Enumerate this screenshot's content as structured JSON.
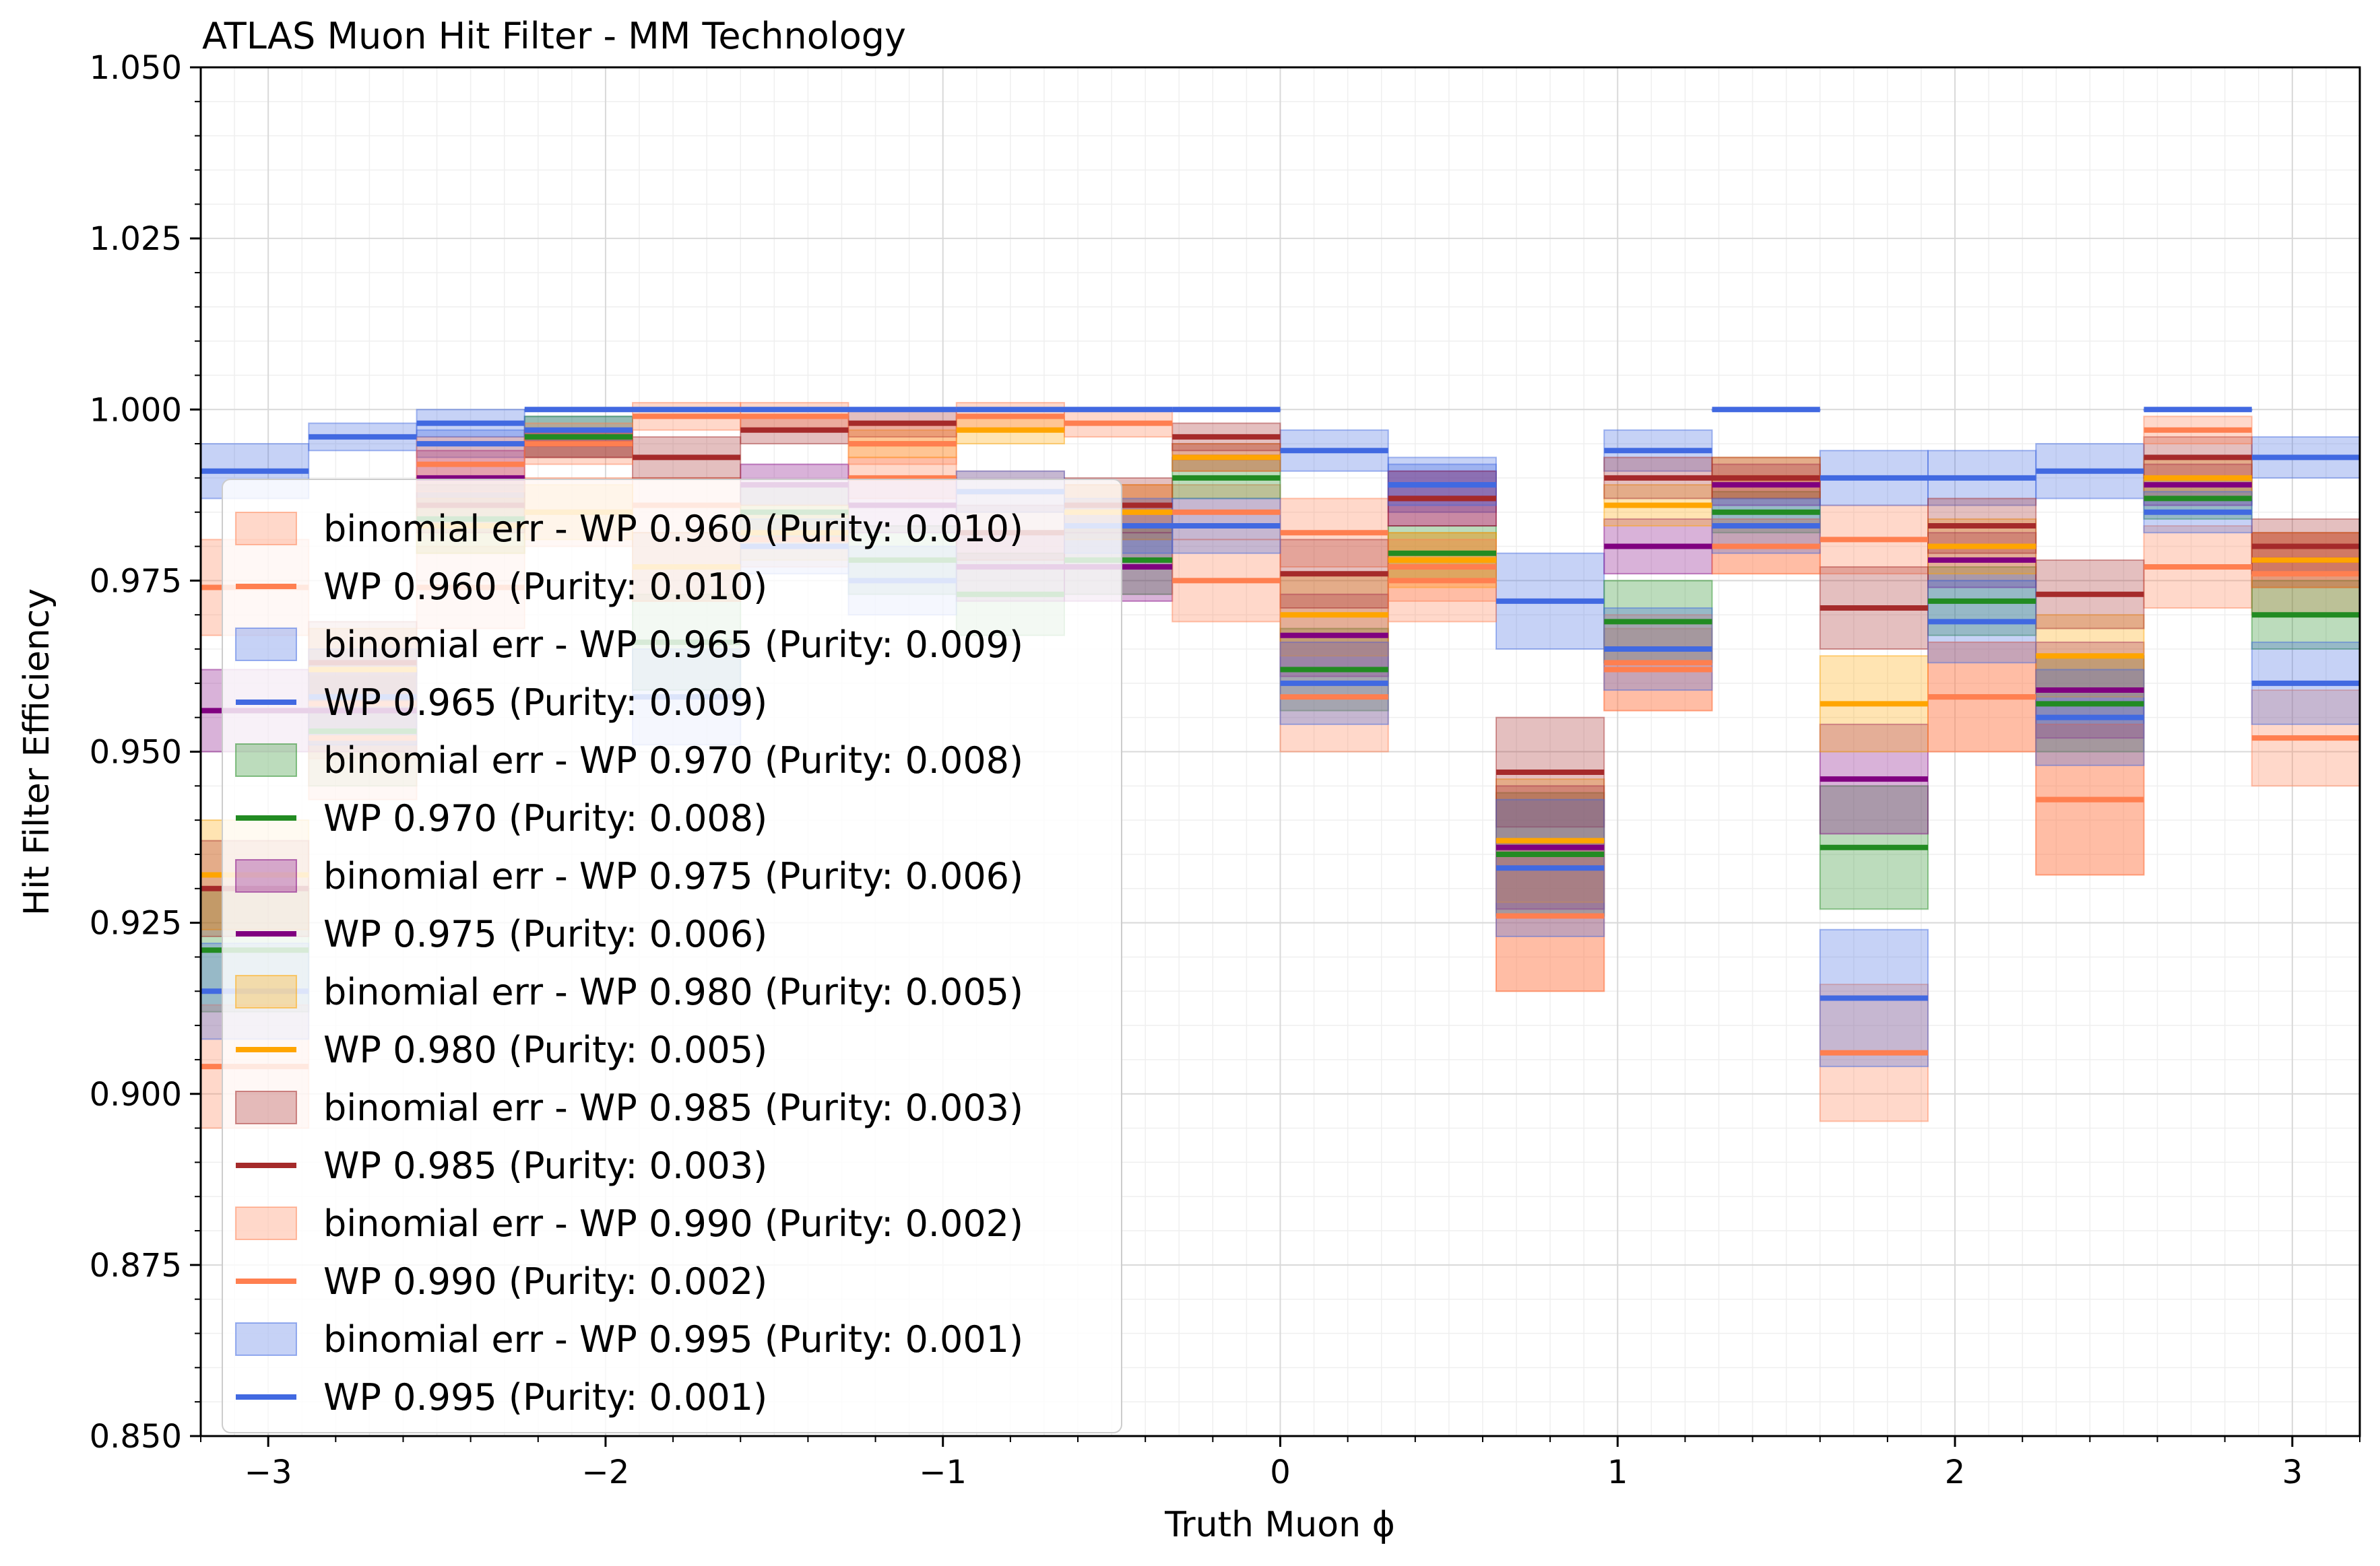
{
  "chart_data": {
    "type": "line",
    "title": "ATLAS Muon Hit Filter - MM Technology",
    "xlabel": "Truth Muon ϕ",
    "ylabel": "Hit Filter Efficiency",
    "xlim": [
      -3.2,
      3.2
    ],
    "ylim": [
      0.85,
      1.05
    ],
    "xticks": [
      -3,
      -2,
      -1,
      0,
      1,
      2,
      3
    ],
    "xtick_labels": [
      "−3",
      "−2",
      "−1",
      "0",
      "1",
      "2",
      "3"
    ],
    "yticks": [
      0.85,
      0.875,
      0.9,
      0.925,
      0.95,
      0.975,
      1.0,
      1.025,
      1.05
    ],
    "ytick_labels": [
      "0.850",
      "0.875",
      "0.900",
      "0.925",
      "0.950",
      "0.975",
      "1.000",
      "1.025",
      "1.050"
    ],
    "grid": true,
    "legend_position": "lower-left",
    "bin_edges": [
      -3.2,
      -2.88,
      -2.56,
      -2.24,
      -1.92,
      -1.6,
      -1.28,
      -0.96,
      -0.64,
      -0.32,
      0.0,
      0.32,
      0.64,
      0.96,
      1.28,
      1.6,
      1.92,
      2.24,
      2.56,
      2.88,
      3.2
    ],
    "series": [
      {
        "name": "WP 0.960 (Purity: 0.010)",
        "band_label": "binomial err - WP 0.960 (Purity: 0.010)",
        "color": "#ff7f50",
        "values": [
          0.974,
          0.957,
          0.974,
          0.985,
          0.986,
          0.981,
          0.99,
          0.988,
          0.985,
          0.985,
          0.982,
          0.977,
          0.926,
          0.962,
          0.98,
          0.981,
          0.958,
          0.943,
          0.977,
          0.976
        ],
        "err": [
          0.007,
          0.008,
          0.006,
          0.005,
          0.004,
          0.004,
          0.003,
          0.003,
          0.004,
          0.004,
          0.005,
          0.005,
          0.011,
          0.006,
          0.004,
          0.005,
          0.008,
          0.011,
          0.006,
          0.006
        ]
      },
      {
        "name": "WP 0.965 (Purity: 0.009)",
        "band_label": "binomial err - WP 0.965 (Purity: 0.009)",
        "color": "#4169e1",
        "values": [
          0.991,
          0.996,
          0.995,
          0.997,
          1.0,
          1.0,
          1.0,
          1.0,
          1.0,
          1.0,
          0.994,
          0.989,
          0.972,
          0.994,
          1.0,
          0.99,
          0.99,
          0.991,
          1.0,
          0.993
        ],
        "err": [
          0.004,
          0.002,
          0.002,
          0.002,
          0.0,
          0.0,
          0.0,
          0.0,
          0.0,
          0.0,
          0.003,
          0.004,
          0.007,
          0.003,
          0.0,
          0.004,
          0.004,
          0.004,
          0.0,
          0.003
        ]
      },
      {
        "name": "WP 0.970 (Purity: 0.008)",
        "band_label": "binomial err - WP 0.970 (Purity: 0.008)",
        "color": "#228b22",
        "values": [
          0.921,
          0.953,
          0.984,
          0.996,
          0.966,
          0.985,
          0.978,
          0.973,
          0.978,
          0.99,
          0.962,
          0.979,
          0.935,
          0.969,
          0.985,
          0.936,
          0.972,
          0.957,
          0.987,
          0.97
        ],
        "err": [
          0.009,
          0.008,
          0.005,
          0.003,
          0.007,
          0.004,
          0.005,
          0.006,
          0.005,
          0.003,
          0.006,
          0.004,
          0.009,
          0.006,
          0.003,
          0.009,
          0.005,
          0.007,
          0.003,
          0.005
        ]
      },
      {
        "name": "WP 0.975 (Purity: 0.006)",
        "band_label": "binomial err - WP 0.975 (Purity: 0.006)",
        "color": "#800080",
        "values": [
          0.956,
          0.956,
          0.99,
          0.995,
          0.977,
          0.989,
          0.986,
          0.977,
          0.977,
          0.993,
          0.967,
          0.987,
          0.936,
          0.98,
          0.989,
          0.946,
          0.978,
          0.959,
          0.989,
          0.978
        ],
        "err": [
          0.006,
          0.006,
          0.004,
          0.002,
          0.005,
          0.003,
          0.004,
          0.005,
          0.005,
          0.002,
          0.006,
          0.004,
          0.009,
          0.004,
          0.003,
          0.008,
          0.004,
          0.007,
          0.003,
          0.004
        ]
      },
      {
        "name": "WP 0.980 (Purity: 0.005)",
        "band_label": "binomial err - WP 0.980 (Purity: 0.005)",
        "color": "#ffa500",
        "values": [
          0.932,
          0.962,
          0.983,
          0.985,
          0.977,
          0.982,
          0.995,
          0.997,
          0.985,
          0.993,
          0.97,
          0.978,
          0.937,
          0.986,
          0.99,
          0.957,
          0.98,
          0.964,
          0.99,
          0.978
        ],
        "err": [
          0.008,
          0.006,
          0.004,
          0.004,
          0.005,
          0.004,
          0.002,
          0.002,
          0.004,
          0.002,
          0.006,
          0.004,
          0.009,
          0.003,
          0.003,
          0.007,
          0.004,
          0.006,
          0.003,
          0.004
        ]
      },
      {
        "name": "WP 0.985 (Purity: 0.003)",
        "band_label": "binomial err - WP 0.985 (Purity: 0.003)",
        "color": "#a52a2a",
        "values": [
          0.93,
          0.963,
          0.986,
          0.995,
          0.993,
          0.997,
          0.998,
          0.982,
          0.986,
          0.996,
          0.976,
          0.987,
          0.947,
          0.99,
          0.99,
          0.971,
          0.983,
          0.973,
          0.993,
          0.98
        ],
        "err": [
          0.007,
          0.006,
          0.004,
          0.002,
          0.003,
          0.002,
          0.002,
          0.004,
          0.004,
          0.002,
          0.005,
          0.004,
          0.008,
          0.003,
          0.003,
          0.006,
          0.004,
          0.005,
          0.003,
          0.004
        ]
      },
      {
        "name": "WP 0.990 (Purity: 0.002)",
        "band_label": "binomial err - WP 0.990 (Purity: 0.002)",
        "color": "#ff7f50",
        "values": [
          0.904,
          0.952,
          0.992,
          0.995,
          0.999,
          0.999,
          0.995,
          0.999,
          0.998,
          0.975,
          0.958,
          0.975,
          0.926,
          0.963,
          0.98,
          0.906,
          0.958,
          0.943,
          0.997,
          0.952
        ],
        "err": [
          0.009,
          0.009,
          0.004,
          0.003,
          0.002,
          0.002,
          0.003,
          0.002,
          0.002,
          0.006,
          0.008,
          0.006,
          0.011,
          0.007,
          0.004,
          0.01,
          0.008,
          0.011,
          0.002,
          0.007
        ]
      },
      {
        "name": "WP 0.995 (Purity: 0.001)",
        "band_label": "binomial err - WP 0.995 (Purity: 0.001)",
        "color": "#4169e1",
        "values": [
          0.915,
          0.958,
          0.998,
          1.0,
          0.958,
          0.98,
          0.975,
          0.988,
          0.983,
          0.983,
          0.96,
          0.989,
          0.933,
          0.965,
          0.983,
          0.914,
          0.969,
          0.955,
          0.985,
          0.96
        ],
        "err": [
          0.007,
          0.007,
          0.002,
          0.0,
          0.007,
          0.004,
          0.005,
          0.003,
          0.004,
          0.004,
          0.006,
          0.003,
          0.01,
          0.006,
          0.004,
          0.01,
          0.006,
          0.007,
          0.003,
          0.006
        ]
      }
    ]
  }
}
